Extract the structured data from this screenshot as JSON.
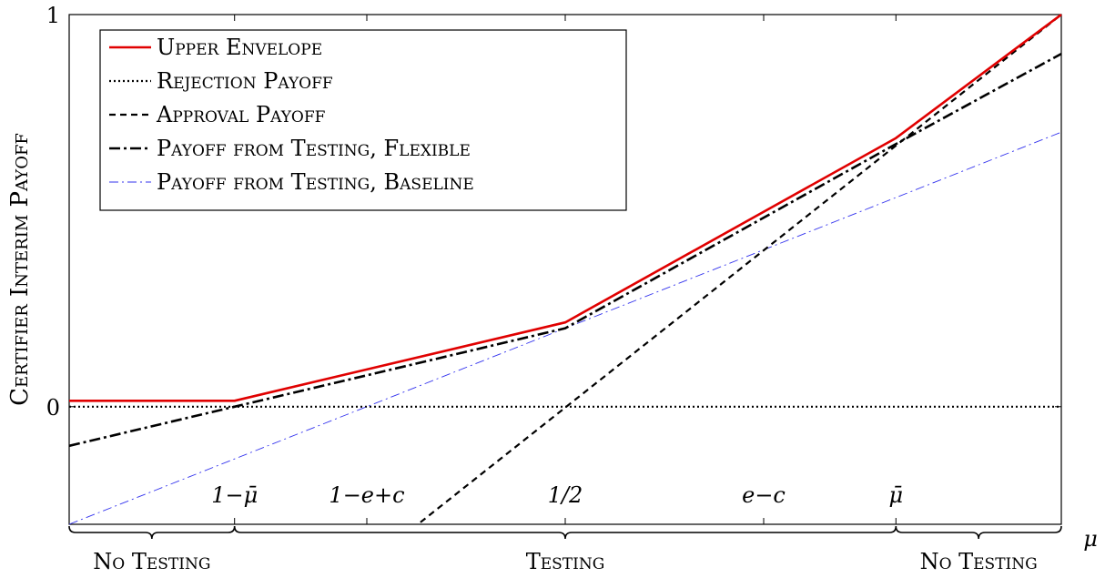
{
  "chart_data": {
    "type": "line",
    "ylabel": "Certifier Interim Payoff",
    "xlabel": "μ",
    "ylim": [
      -0.3,
      1
    ],
    "xlim": [
      0,
      1
    ],
    "y_ticks": [
      {
        "value": 0,
        "label": "0"
      },
      {
        "value": 1,
        "label": "1"
      }
    ],
    "x_ticks": [
      {
        "value": 0.1667,
        "label": "1−μ̄"
      },
      {
        "value": 0.3,
        "label": "1−e+c"
      },
      {
        "value": 0.5,
        "label": "1/2"
      },
      {
        "value": 0.7,
        "label": "e−c"
      },
      {
        "value": 0.8333,
        "label": "μ̄"
      }
    ],
    "legend_position": "top-left",
    "series": [
      {
        "name": "Upper Envelope",
        "color": "#e00000",
        "style": "solid",
        "x": [
          0,
          0.1667,
          0.5,
          0.8333,
          1
        ],
        "y": [
          0.015,
          0.015,
          0.215,
          0.685,
          1.0
        ]
      },
      {
        "name": "Rejection Payoff",
        "color": "#000000",
        "style": "dotted",
        "x": [
          0,
          1
        ],
        "y": [
          0,
          0
        ]
      },
      {
        "name": "Approval Payoff",
        "color": "#000000",
        "style": "dashed",
        "x": [
          0.354,
          1
        ],
        "y": [
          -0.295,
          1.0
        ]
      },
      {
        "name": "Payoff from Testing, Flexible",
        "color": "#000000",
        "style": "dashdot",
        "x": [
          0,
          0.1667,
          0.5,
          0.8333,
          1
        ],
        "y": [
          -0.1,
          0,
          0.2,
          0.67,
          0.9
        ]
      },
      {
        "name": "Payoff from Testing, Baseline",
        "color": "#3333ee",
        "style": "dashdot-thin",
        "x": [
          0,
          1
        ],
        "y": [
          -0.3,
          0.7
        ]
      }
    ],
    "regions": [
      {
        "label": "No Testing",
        "from": 0,
        "to": 0.1667
      },
      {
        "label": "Testing",
        "from": 0.1667,
        "to": 0.8333
      },
      {
        "label": "No Testing",
        "from": 0.8333,
        "to": 1
      }
    ]
  }
}
